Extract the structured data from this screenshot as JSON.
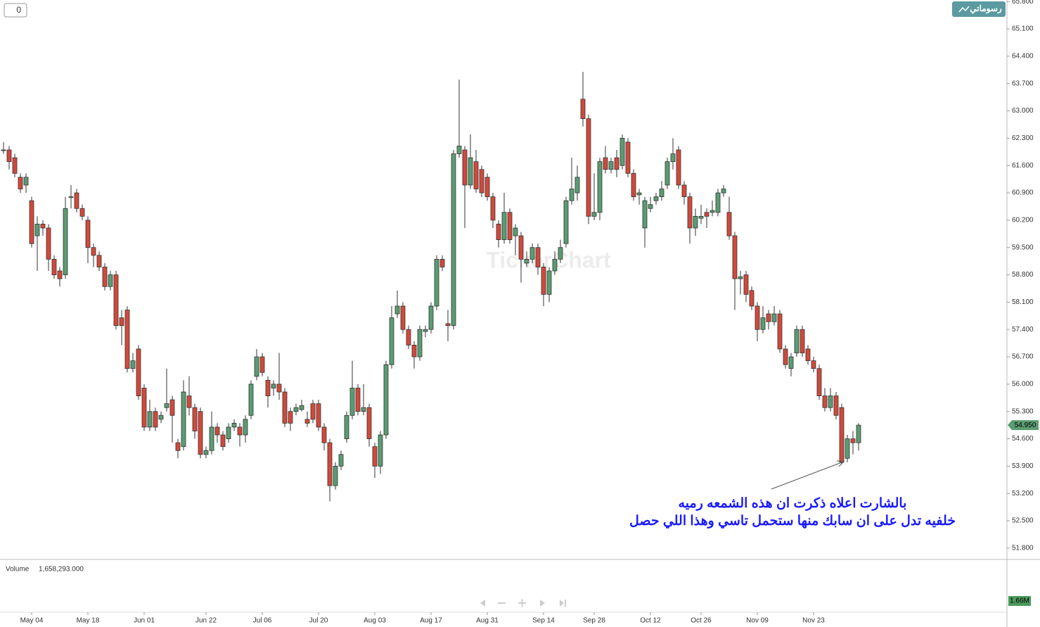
{
  "chart_data": {
    "type": "candlestick",
    "open": [
      62.0,
      62.0,
      61.8,
      61.3,
      61.1,
      60.7,
      59.8,
      60.1,
      60.0,
      59.2,
      58.9,
      58.8,
      60.8,
      60.9,
      60.5,
      60.2,
      59.5,
      59.3,
      59.0,
      58.5,
      58.8,
      57.7,
      57.9,
      56.4,
      56.9,
      55.9,
      54.9,
      55.3,
      55.1,
      55.4,
      55.6,
      54.5,
      54.4,
      55.7,
      55.4,
      55.3,
      54.2,
      54.3,
      54.9,
      54.7,
      54.6,
      54.9,
      54.9,
      54.7,
      55.2,
      56.2,
      56.7,
      56.1,
      55.9,
      56.0,
      55.8,
      55.3,
      55.3,
      55.35,
      55.1,
      55.5,
      55.5,
      54.9,
      54.5,
      53.4,
      53.9,
      54.6,
      55.2,
      55.9,
      55.3,
      55.4,
      54.4,
      53.9,
      54.7,
      56.5,
      57.8,
      58.0,
      57.4,
      57.0,
      56.7,
      57.35,
      57.4,
      58.0,
      59.2,
      57.55,
      57.5,
      61.9,
      62.0,
      61.1,
      61.7,
      61.5,
      61.3,
      60.8,
      60.1,
      59.7,
      60.4,
      59.8,
      59.8,
      59.1,
      59.2,
      59.5,
      59.0,
      58.3,
      58.9,
      59.2,
      59.6,
      60.7,
      60.9,
      63.3,
      62.8,
      60.3,
      60.4,
      61.8,
      61.5,
      61.8,
      61.6,
      62.2,
      61.4,
      60.85,
      60.0,
      60.5,
      60.7,
      60.8,
      61.1,
      61.7,
      62.0,
      61.1,
      60.8,
      60.0,
      60.25,
      60.4,
      60.4,
      60.4,
      60.9,
      60.4,
      59.8,
      58.7,
      58.8,
      58.4,
      58.0,
      57.4,
      57.8,
      57.6,
      57.8,
      56.9,
      56.4,
      56.8,
      57.4,
      56.9,
      56.6,
      56.4,
      55.7,
      55.4,
      55.7,
      55.4,
      54.1,
      54.6,
      54.5
    ],
    "high": [
      62.2,
      62.1,
      61.9,
      61.4,
      61.4,
      60.8,
      60.3,
      60.2,
      60.1,
      59.3,
      59.0,
      60.8,
      61.1,
      61.0,
      60.6,
      60.3,
      59.6,
      59.4,
      59.1,
      58.9,
      58.9,
      57.9,
      58.0,
      56.8,
      57.0,
      56.0,
      55.6,
      55.4,
      55.3,
      56.4,
      55.7,
      54.6,
      56.1,
      56.2,
      55.5,
      55.4,
      54.4,
      55.3,
      55.0,
      54.8,
      55.0,
      55.1,
      55.0,
      55.2,
      56.1,
      56.9,
      56.8,
      56.2,
      56.1,
      56.8,
      55.9,
      55.4,
      55.5,
      55.6,
      55.3,
      55.6,
      55.6,
      55.0,
      54.6,
      54.0,
      54.3,
      55.3,
      56.6,
      56.0,
      56.0,
      55.5,
      54.5,
      54.8,
      56.6,
      58.0,
      58.4,
      58.1,
      57.5,
      57.1,
      57.5,
      57.5,
      58.1,
      59.3,
      59.3,
      57.9,
      62.0,
      63.8,
      62.1,
      62.4,
      62.0,
      61.6,
      61.4,
      60.9,
      60.2,
      60.9,
      60.5,
      60.1,
      59.9,
      59.4,
      59.6,
      59.6,
      59.1,
      59.0,
      59.4,
      59.7,
      60.8,
      61.8,
      61.6,
      64.0,
      62.9,
      61.4,
      61.8,
      62.1,
      61.8,
      62.0,
      62.4,
      62.3,
      61.5,
      61.0,
      60.8,
      60.8,
      60.9,
      61.2,
      61.8,
      62.3,
      62.1,
      61.2,
      60.9,
      60.5,
      60.6,
      60.5,
      60.7,
      61.0,
      61.1,
      60.8,
      59.9,
      58.9,
      58.9,
      58.5,
      58.1,
      58.0,
      57.9,
      58.0,
      57.9,
      57.0,
      56.8,
      57.5,
      57.5,
      57.0,
      56.7,
      56.5,
      55.9,
      55.9,
      55.8,
      55.5,
      54.7,
      54.8,
      55.0
    ],
    "low": [
      61.9,
      61.5,
      61.3,
      60.9,
      60.9,
      59.5,
      58.9,
      59.8,
      58.9,
      58.7,
      58.5,
      58.7,
      60.5,
      60.4,
      60.2,
      59.1,
      59.0,
      58.9,
      58.4,
      58.4,
      57.4,
      57.0,
      56.3,
      56.3,
      55.6,
      54.8,
      54.8,
      54.8,
      55.0,
      55.3,
      54.5,
      54.1,
      54.3,
      55.2,
      54.6,
      54.1,
      54.1,
      54.2,
      54.5,
      54.3,
      54.5,
      54.8,
      54.4,
      54.5,
      55.1,
      56.1,
      56.2,
      55.4,
      55.7,
      55.6,
      54.9,
      54.8,
      55.2,
      55.3,
      54.9,
      55.0,
      54.8,
      54.3,
      53.0,
      53.3,
      53.8,
      54.5,
      55.1,
      55.2,
      55.2,
      54.4,
      53.6,
      53.7,
      54.6,
      56.4,
      57.7,
      57.3,
      56.9,
      56.4,
      56.6,
      57.2,
      57.3,
      57.9,
      58.9,
      57.1,
      57.4,
      61.8,
      60.0,
      61.0,
      60.9,
      60.8,
      60.7,
      60.0,
      59.5,
      59.6,
      59.6,
      59.3,
      58.6,
      59.0,
      59.1,
      58.8,
      58.0,
      58.1,
      58.8,
      59.1,
      59.5,
      60.6,
      60.7,
      62.6,
      60.1,
      60.2,
      60.2,
      61.4,
      61.4,
      61.3,
      61.5,
      61.3,
      60.7,
      60.6,
      59.5,
      60.4,
      60.6,
      60.7,
      61.0,
      61.5,
      61.0,
      60.6,
      59.6,
      59.8,
      60.1,
      60.0,
      60.3,
      60.3,
      60.8,
      59.7,
      57.9,
      58.3,
      58.1,
      57.9,
      57.1,
      57.3,
      57.4,
      57.5,
      56.8,
      56.4,
      56.2,
      56.7,
      56.7,
      56.5,
      56.3,
      55.6,
      55.3,
      55.3,
      55.1,
      53.95,
      54.0,
      54.2,
      54.3
    ],
    "close": [
      62.0,
      61.7,
      61.4,
      61.0,
      61.3,
      59.6,
      60.1,
      60.0,
      59.2,
      58.8,
      58.7,
      60.5,
      60.8,
      60.5,
      60.3,
      59.5,
      59.3,
      59.0,
      58.5,
      58.8,
      57.5,
      57.5,
      56.4,
      56.6,
      55.7,
      54.9,
      55.3,
      54.9,
      55.2,
      55.5,
      55.2,
      54.3,
      55.8,
      55.4,
      54.8,
      54.2,
      54.3,
      54.9,
      54.7,
      54.4,
      54.9,
      55.0,
      54.7,
      55.1,
      56.0,
      56.7,
      56.3,
      55.7,
      56.0,
      55.8,
      55.0,
      55.0,
      55.4,
      55.45,
      55.0,
      55.1,
      54.9,
      54.5,
      53.4,
      53.9,
      54.2,
      55.2,
      55.9,
      55.3,
      55.4,
      54.6,
      53.9,
      54.7,
      56.5,
      57.7,
      58.0,
      57.4,
      57.0,
      56.7,
      57.4,
      57.4,
      58.0,
      59.2,
      59.0,
      57.5,
      61.9,
      62.1,
      61.1,
      61.8,
      61.0,
      60.9,
      60.8,
      60.2,
      59.7,
      60.4,
      59.7,
      60.0,
      59.2,
      59.2,
      59.5,
      59.0,
      58.3,
      58.9,
      59.2,
      59.5,
      60.7,
      61.0,
      61.3,
      62.8,
      60.3,
      60.4,
      61.7,
      61.5,
      61.7,
      61.5,
      62.3,
      61.4,
      60.8,
      60.9,
      60.7,
      60.6,
      60.8,
      61.0,
      61.7,
      61.9,
      61.1,
      60.8,
      60.0,
      60.3,
      60.3,
      60.3,
      60.45,
      60.9,
      61.0,
      59.8,
      58.7,
      58.75,
      58.3,
      58.0,
      57.4,
      57.7,
      57.6,
      57.8,
      56.9,
      56.5,
      56.7,
      57.4,
      56.8,
      56.6,
      56.4,
      55.7,
      55.4,
      55.7,
      55.2,
      54.0,
      54.6,
      54.5,
      54.95
    ],
    "up_color": "#5b9c72",
    "down_color": "#d2493b",
    "xticks": [
      {
        "value": 5,
        "label": "May 04"
      },
      {
        "value": 15,
        "label": "May 18"
      },
      {
        "value": 25,
        "label": "Jun 01"
      },
      {
        "value": 36,
        "label": "Jun 22"
      },
      {
        "value": 46,
        "label": "Jul 06"
      },
      {
        "value": 56,
        "label": "Jul 20"
      },
      {
        "value": 66,
        "label": "Aug 03"
      },
      {
        "value": 76,
        "label": "Aug 17"
      },
      {
        "value": 86,
        "label": "Aug 31"
      },
      {
        "value": 96,
        "label": "Sep 14"
      },
      {
        "value": 105,
        "label": "Sep 28"
      },
      {
        "value": 115,
        "label": "Oct 12"
      },
      {
        "value": 124,
        "label": "Oct 26"
      },
      {
        "value": 134,
        "label": "Nov 09"
      },
      {
        "value": 144,
        "label": "Nov 23"
      }
    ],
    "ylim": [
      51.51,
      65.84
    ],
    "yticks": [
      {
        "value": 51.8,
        "label": "51.800"
      },
      {
        "value": 52.5,
        "label": "52.500"
      },
      {
        "value": 53.2,
        "label": "53.200"
      },
      {
        "value": 53.9,
        "label": "53.900"
      },
      {
        "value": 54.6,
        "label": "54.600"
      },
      {
        "value": 55.3,
        "label": "55.300"
      },
      {
        "value": 56.0,
        "label": "56.000"
      },
      {
        "value": 56.7,
        "label": "56.700"
      },
      {
        "value": 57.4,
        "label": "57.400"
      },
      {
        "value": 58.1,
        "label": "58.100"
      },
      {
        "value": 58.8,
        "label": "58.800"
      },
      {
        "value": 59.5,
        "label": "59.500"
      },
      {
        "value": 60.2,
        "label": "60.200"
      },
      {
        "value": 60.9,
        "label": "60.900"
      },
      {
        "value": 61.6,
        "label": "61.600"
      },
      {
        "value": 62.3,
        "label": "62.300"
      },
      {
        "value": 63.0,
        "label": "63.000"
      },
      {
        "value": 63.7,
        "label": "63.700"
      },
      {
        "value": 64.4,
        "label": "64.400"
      },
      {
        "value": 65.1,
        "label": "65.100"
      },
      {
        "value": 65.8,
        "label": "65.800"
      }
    ],
    "grid": false,
    "last_price": {
      "value": 54.95,
      "label": "54.950"
    },
    "annotation": [
      "بالشارت اعلاه ذكرت ان هذه الشمعه رميه",
      "خلفيه تدل على ان سابك منها ستحمل تاسي وهذا اللي حصل"
    ],
    "volume": {
      "label": "Volume",
      "total": "1,658,293.000",
      "axis_label": "1.66M"
    }
  },
  "ui": {
    "counter": "0",
    "button": "رسوماتي",
    "watermark": "TickerChart"
  }
}
